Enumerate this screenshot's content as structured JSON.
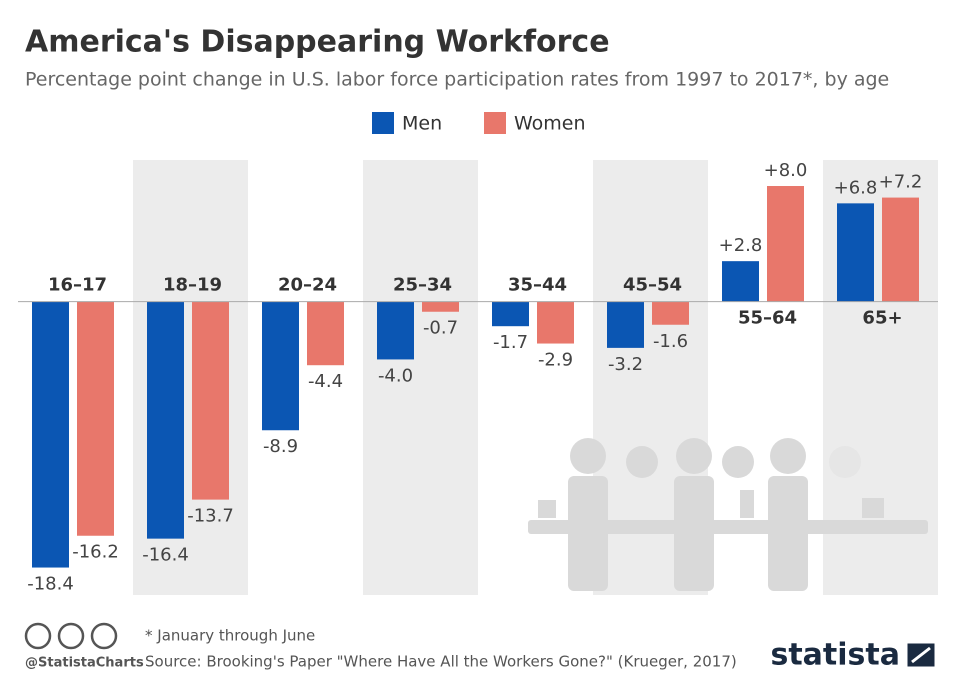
{
  "chart_data": {
    "type": "bar",
    "title": "America's Disappearing Workforce",
    "subtitle": "Percentage point change in U.S. labor force participation rates from 1997 to 2017*, by age",
    "categories": [
      "16–17",
      "18–19",
      "20–24",
      "25–34",
      "35–44",
      "45–54",
      "55–64",
      "65+"
    ],
    "series": [
      {
        "name": "Men",
        "color": "#0b56b3",
        "values": [
          -18.4,
          -16.4,
          -8.9,
          -4.0,
          -1.7,
          -3.2,
          2.8,
          6.8
        ],
        "value_labels": [
          "-18.4",
          "-16.4",
          "-8.9",
          "-4.0",
          "-1.7",
          "-3.2",
          "+2.8",
          "+6.8"
        ]
      },
      {
        "name": "Women",
        "color": "#e8776b",
        "values": [
          -16.2,
          -13.7,
          -4.4,
          -0.7,
          -2.9,
          -1.6,
          8.0,
          7.2
        ],
        "value_labels": [
          "-16.2",
          "-13.7",
          "-4.4",
          "-0.7",
          "-2.9",
          "-1.6",
          "+8.0",
          "+7.2"
        ]
      }
    ],
    "ylim": [
      -20.3,
      9.8
    ],
    "footnote": "* January through June",
    "source": "Source: Brooking's Paper \"Where Have All the Workers Gone?\" (Krueger, 2017)",
    "credit": "@StatistaCharts",
    "brand": "statista"
  }
}
